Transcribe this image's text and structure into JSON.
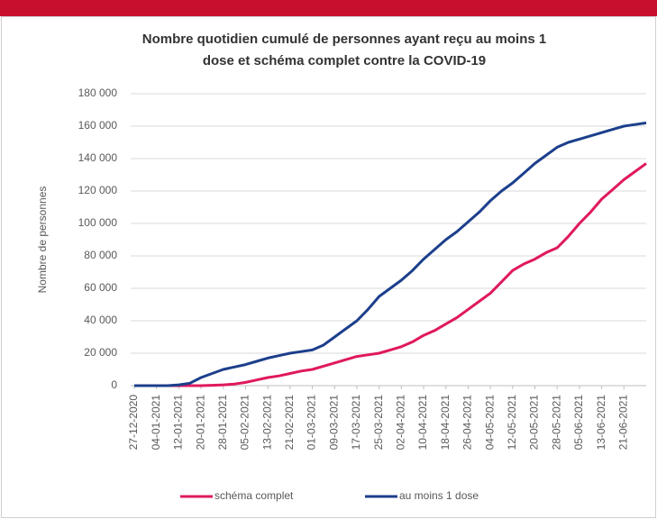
{
  "chart_data": {
    "type": "line",
    "title": [
      "Nombre quotidien cumulé de personnes ayant reçu au moins 1",
      "dose et schéma complet contre la COVID-19"
    ],
    "y_label": "Nombre de personnes",
    "categories": [
      "27-12-2020",
      null,
      "04-01-2021",
      null,
      "12-01-2021",
      null,
      "20-01-2021",
      null,
      "28-01-2021",
      null,
      "05-02-2021",
      null,
      "13-02-2021",
      null,
      "21-02-2021",
      null,
      "01-03-2021",
      null,
      "09-03-2021",
      null,
      "17-03-2021",
      null,
      "25-03-2021",
      null,
      "02-04-2021",
      null,
      "10-04-2021",
      null,
      "18-04-2021",
      null,
      "26-04-2021",
      null,
      "04-05-2021",
      null,
      "12-05-2021",
      null,
      "20-05-2021",
      null,
      "28-05-2021",
      null,
      "05-06-2021",
      null,
      "13-06-2021",
      null,
      "21-06-2021",
      null,
      null
    ],
    "series": [
      {
        "name": "schéma complet",
        "color": "#e0185e",
        "values": [
          0,
          0,
          0,
          0,
          0,
          0,
          0,
          200,
          500,
          1000,
          2000,
          3500,
          5000,
          6000,
          7500,
          9000,
          10000,
          12000,
          14000,
          16000,
          18000,
          19000,
          20000,
          22000,
          24000,
          27000,
          31000,
          34000,
          38000,
          42000,
          47000,
          52000,
          57000,
          64000,
          71000,
          75000,
          78000,
          82000,
          85000,
          92000,
          100000,
          107000,
          115000,
          121000,
          127000,
          132000,
          137000
        ]
      },
      {
        "name": "au moins 1 dose",
        "color": "#1c3f8c",
        "values": [
          0,
          0,
          0,
          0,
          500,
          1500,
          5000,
          7500,
          10000,
          11500,
          13000,
          15000,
          17000,
          18500,
          20000,
          21000,
          22000,
          25000,
          30000,
          35000,
          40000,
          47000,
          55000,
          60000,
          65000,
          71000,
          78000,
          84000,
          90000,
          95000,
          101000,
          107000,
          114000,
          120000,
          125000,
          131000,
          137000,
          142000,
          147000,
          150000,
          152000,
          154000,
          156000,
          158000,
          160000,
          161000,
          162000
        ]
      }
    ],
    "ylim": [
      0,
      180000
    ],
    "yticks": [
      0,
      {
        "value": 20000,
        "label": "20 000"
      },
      {
        "value": 40000,
        "label": "40 000"
      },
      {
        "value": 60000,
        "label": "60 000"
      },
      {
        "value": 80000,
        "label": "80 000"
      },
      {
        "value": 100000,
        "label": "100 000"
      },
      {
        "value": 120000,
        "label": "120 000"
      },
      {
        "value": 140000,
        "label": "140 000"
      },
      {
        "value": 160000,
        "label": "160 000"
      },
      {
        "value": 180000,
        "label": "180 000"
      }
    ],
    "grid": true,
    "legend": "bottom"
  }
}
